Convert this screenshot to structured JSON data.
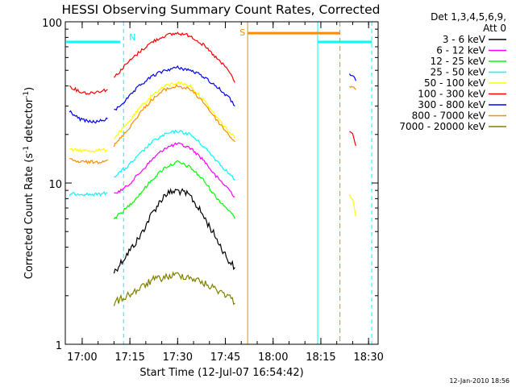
{
  "chart_data": {
    "type": "line",
    "title": "HESSI Observing Summary Count Rates, Corrected",
    "xlabel": "Start Time (12-Jul-07 16:54:42)",
    "ylabel_main": "Corrected Count Rate (s",
    "ylabel_sup1": "-1",
    "ylabel_mid": " detector",
    "ylabel_sup2": "-1",
    "ylabel_end": ")",
    "yscale": "log",
    "ylim": [
      1,
      100
    ],
    "xlim": [
      "16:54:42",
      "18:33:00"
    ],
    "x_ticks": [
      "17:00",
      "17:15",
      "17:30",
      "17:45",
      "18:00",
      "18:15",
      "18:30"
    ],
    "y_ticks": [
      "1",
      "10",
      "100"
    ],
    "legend_title_1": "Det 1,3,4,5,6,9,",
    "legend_title_2": "Att 0",
    "legend_placement": "right",
    "timestamp": "12-Jan-2010 18:56",
    "flags": {
      "night_label": "N",
      "saa_label": "S"
    },
    "series": [
      {
        "name": "3 - 6 keV",
        "color": "#000000",
        "segments": [
          {
            "x": [
              "17:10",
              "17:14",
              "17:18",
              "17:22",
              "17:26",
              "17:30",
              "17:34",
              "17:38",
              "17:42",
              "17:46",
              "17:48"
            ],
            "y": [
              2.8,
              3.6,
              4.6,
              6.5,
              8.5,
              9.0,
              8.3,
              6.3,
              4.6,
              3.3,
              3.0
            ]
          }
        ]
      },
      {
        "name": "6 - 12 keV",
        "color": "#ff00ff",
        "segments": [
          {
            "x": [
              "17:10",
              "17:14",
              "17:18",
              "17:22",
              "17:26",
              "17:30",
              "17:34",
              "17:38",
              "17:42",
              "17:46",
              "17:48"
            ],
            "y": [
              8.5,
              9.5,
              11.5,
              14,
              16.5,
              17.5,
              16.5,
              14,
              11,
              9.2,
              8.2
            ]
          }
        ]
      },
      {
        "name": "12 - 25 keV",
        "color": "#00ff00",
        "segments": [
          {
            "x": [
              "17:10",
              "17:14",
              "17:18",
              "17:22",
              "17:26",
              "17:30",
              "17:34",
              "17:38",
              "17:42",
              "17:46",
              "17:48"
            ],
            "y": [
              6,
              7,
              8.5,
              10.5,
              12.5,
              13.5,
              12.5,
              10.5,
              8.2,
              6.8,
              6.0
            ]
          }
        ]
      },
      {
        "name": "25 - 50 keV",
        "color": "#00ffff",
        "segments": [
          {
            "x": [
              "16:56",
              "16:59",
              "17:02",
              "17:05",
              "17:08"
            ],
            "y": [
              8.5,
              8.6,
              8.5,
              8.5,
              8.7
            ]
          },
          {
            "x": [
              "17:10",
              "17:14",
              "17:18",
              "17:22",
              "17:26",
              "17:30",
              "17:34",
              "17:38",
              "17:42",
              "17:46",
              "17:48"
            ],
            "y": [
              11,
              12.5,
              15,
              18,
              20,
              21,
              20,
              17,
              14,
              11.5,
              10.5
            ]
          }
        ]
      },
      {
        "name": "50 - 100 keV",
        "color": "#ffff00",
        "segments": [
          {
            "x": [
              "16:56",
              "16:59",
              "17:02",
              "17:05",
              "17:08"
            ],
            "y": [
              16,
              16,
              15.8,
              16,
              16
            ]
          },
          {
            "x": [
              "17:10",
              "17:14",
              "17:18",
              "17:22",
              "17:26",
              "17:30",
              "17:34",
              "17:38",
              "17:42",
              "17:46",
              "17:48"
            ],
            "y": [
              19,
              23,
              29,
              35,
              40,
              42,
              40,
              33,
              26,
              21,
              19
            ]
          },
          {
            "x": [
              "18:24",
              "18:25",
              "18:26"
            ],
            "y": [
              8.5,
              8.0,
              6.2
            ]
          }
        ]
      },
      {
        "name": "100 - 300 keV",
        "color": "#ff0000",
        "segments": [
          {
            "x": [
              "16:56",
              "16:59",
              "17:02",
              "17:05",
              "17:08"
            ],
            "y": [
              40,
              37,
              36,
              37,
              38
            ]
          },
          {
            "x": [
              "17:10",
              "17:14",
              "17:18",
              "17:22",
              "17:26",
              "17:30",
              "17:34",
              "17:38",
              "17:42",
              "17:46",
              "17:48"
            ],
            "y": [
              45,
              55,
              65,
              75,
              82,
              85,
              82,
              72,
              60,
              50,
              42
            ]
          },
          {
            "x": [
              "18:24",
              "18:25",
              "18:26"
            ],
            "y": [
              21,
              20,
              17
            ]
          }
        ]
      },
      {
        "name": "300 - 800 keV",
        "color": "#0000ff",
        "segments": [
          {
            "x": [
              "16:56",
              "16:59",
              "17:02",
              "17:05",
              "17:08"
            ],
            "y": [
              28,
              25,
              24,
              24,
              25
            ]
          },
          {
            "x": [
              "17:10",
              "17:14",
              "17:18",
              "17:22",
              "17:26",
              "17:30",
              "17:34",
              "17:38",
              "17:42",
              "17:46",
              "17:48"
            ],
            "y": [
              28,
              33,
              40,
              46,
              50,
              52,
              50,
              46,
              40,
              34,
              30
            ]
          },
          {
            "x": [
              "18:24",
              "18:25",
              "18:26"
            ],
            "y": [
              48,
              46,
              43
            ]
          }
        ]
      },
      {
        "name": "800 - 7000 keV",
        "color": "#ff8c00",
        "segments": [
          {
            "x": [
              "16:56",
              "16:59",
              "17:02",
              "17:05",
              "17:08"
            ],
            "y": [
              14,
              13.5,
              13.5,
              13.5,
              14
            ]
          },
          {
            "x": [
              "17:10",
              "17:14",
              "17:18",
              "17:22",
              "17:26",
              "17:30",
              "17:34",
              "17:38",
              "17:42",
              "17:46",
              "17:48"
            ],
            "y": [
              17,
              21,
              27,
              33,
              38,
              40,
              38,
              32,
              25,
              20,
              18
            ]
          },
          {
            "x": [
              "18:24",
              "18:25",
              "18:26"
            ],
            "y": [
              40,
              39,
              38
            ]
          }
        ]
      },
      {
        "name": "7000 - 20000 keV",
        "color": "#808000",
        "segments": [
          {
            "x": [
              "17:10",
              "17:14",
              "17:18",
              "17:22",
              "17:26",
              "17:30",
              "17:34",
              "17:38",
              "17:42",
              "17:46",
              "17:48"
            ],
            "y": [
              1.8,
              2.0,
              2.2,
              2.5,
              2.6,
              2.7,
              2.6,
              2.4,
              2.2,
              2.0,
              1.8
            ]
          }
        ]
      }
    ]
  }
}
